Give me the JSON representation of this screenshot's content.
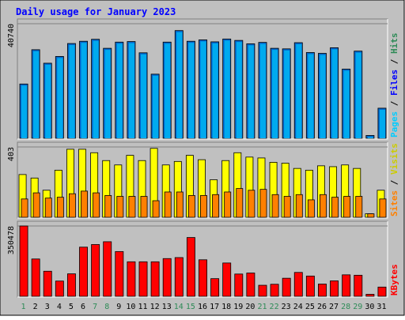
{
  "title": "Daily usage for January 2023",
  "colors": {
    "frame": "#c0c0c0",
    "plot_bg": "#c0c0c0",
    "title": "#0000ff",
    "weekday_label": "#0000ff",
    "weekend_label": "#2e8b57",
    "hits": "#00aaee",
    "files": "#0066cc",
    "pages": "#00ccff",
    "visits": "#ffff00",
    "sites": "#ff8000",
    "kbytes": "#ff0000",
    "gridline": "#808080"
  },
  "chart_data": [
    {
      "type": "bar",
      "panel": "hits-files-pages",
      "side_label_parts": [
        {
          "text": "Pages",
          "color": "#00ccff"
        },
        {
          "text": " / ",
          "color": "#000000"
        },
        {
          "text": "Files",
          "color": "#0000ff"
        },
        {
          "text": " / ",
          "color": "#000000"
        },
        {
          "text": "Hits",
          "color": "#2e8b57"
        }
      ],
      "ymax_label": "40740",
      "ylim": [
        0,
        40740
      ],
      "x": [
        1,
        2,
        3,
        4,
        5,
        6,
        7,
        8,
        9,
        10,
        11,
        12,
        13,
        14,
        15,
        16,
        17,
        18,
        19,
        20,
        21,
        22,
        23,
        24,
        25,
        26,
        27,
        28,
        29,
        30,
        31
      ],
      "series": [
        {
          "key": "hits",
          "values": [
            19300,
            31500,
            26700,
            29100,
            33700,
            34500,
            35200,
            32000,
            34200,
            34400,
            30400,
            22800,
            34200,
            38300,
            34500,
            35000,
            34300,
            35300,
            34800,
            33600,
            34100,
            32000,
            31800,
            34000,
            30500,
            30200,
            32200,
            24600,
            31000,
            1000,
            10700
          ]
        }
      ]
    },
    {
      "type": "bar",
      "panel": "visits-sites",
      "side_label_parts": [
        {
          "text": "Sites",
          "color": "#ff8000"
        },
        {
          "text": " / ",
          "color": "#000000"
        },
        {
          "text": "Visits",
          "color": "#cccc00"
        }
      ],
      "ymax_label": "403",
      "ylim": [
        0,
        403
      ],
      "x": [
        1,
        2,
        3,
        4,
        5,
        6,
        7,
        8,
        9,
        10,
        11,
        12,
        13,
        14,
        15,
        16,
        17,
        18,
        19,
        20,
        21,
        22,
        23,
        24,
        25,
        26,
        27,
        28,
        29,
        30,
        31
      ],
      "series": [
        {
          "key": "visits",
          "values": [
            245,
            225,
            155,
            270,
            390,
            390,
            370,
            325,
            300,
            355,
            325,
            395,
            300,
            320,
            355,
            330,
            215,
            325,
            370,
            345,
            340,
            315,
            310,
            280,
            270,
            295,
            290,
            300,
            280,
            20,
            155
          ]
        },
        {
          "key": "sites",
          "values": [
            105,
            140,
            110,
            115,
            135,
            150,
            140,
            125,
            120,
            120,
            120,
            95,
            145,
            145,
            125,
            125,
            130,
            145,
            165,
            155,
            160,
            130,
            120,
            130,
            100,
            130,
            115,
            120,
            120,
            20,
            105
          ]
        }
      ]
    },
    {
      "type": "bar",
      "panel": "kbytes",
      "side_label_parts": [
        {
          "text": "KBytes",
          "color": "#ff0000"
        }
      ],
      "ymax_label": "350478",
      "ylim": [
        0,
        350478
      ],
      "x": [
        1,
        2,
        3,
        4,
        5,
        6,
        7,
        8,
        9,
        10,
        11,
        12,
        13,
        14,
        15,
        16,
        17,
        18,
        19,
        20,
        21,
        22,
        23,
        24,
        25,
        26,
        27,
        28,
        29,
        30,
        31
      ],
      "series": [
        {
          "key": "kbytes",
          "values": [
            350478,
            186000,
            125000,
            76000,
            112000,
            245000,
            258000,
            272000,
            223000,
            172000,
            172000,
            172000,
            188000,
            193000,
            293000,
            182000,
            88000,
            166000,
            111000,
            116000,
            55000,
            60000,
            90000,
            119000,
            101000,
            61000,
            77000,
            107000,
            105000,
            10000,
            46000
          ]
        }
      ]
    }
  ],
  "day_labels": [
    {
      "text": "1",
      "weekend": true
    },
    {
      "text": "2",
      "weekend": false
    },
    {
      "text": "3",
      "weekend": false
    },
    {
      "text": "4",
      "weekend": false
    },
    {
      "text": "5",
      "weekend": false
    },
    {
      "text": "6",
      "weekend": false
    },
    {
      "text": "7",
      "weekend": true
    },
    {
      "text": "8",
      "weekend": true
    },
    {
      "text": "9",
      "weekend": false
    },
    {
      "text": "10",
      "weekend": false
    },
    {
      "text": "11",
      "weekend": false
    },
    {
      "text": "12",
      "weekend": false
    },
    {
      "text": "13",
      "weekend": false
    },
    {
      "text": "14",
      "weekend": true
    },
    {
      "text": "15",
      "weekend": true
    },
    {
      "text": "16",
      "weekend": false
    },
    {
      "text": "17",
      "weekend": false
    },
    {
      "text": "18",
      "weekend": false
    },
    {
      "text": "19",
      "weekend": false
    },
    {
      "text": "20",
      "weekend": false
    },
    {
      "text": "21",
      "weekend": true
    },
    {
      "text": "22",
      "weekend": true
    },
    {
      "text": "23",
      "weekend": false
    },
    {
      "text": "24",
      "weekend": false
    },
    {
      "text": "25",
      "weekend": false
    },
    {
      "text": "26",
      "weekend": false
    },
    {
      "text": "27",
      "weekend": false
    },
    {
      "text": "28",
      "weekend": true
    },
    {
      "text": "29",
      "weekend": true
    },
    {
      "text": "30",
      "weekend": false
    },
    {
      "text": "31",
      "weekend": false
    }
  ]
}
